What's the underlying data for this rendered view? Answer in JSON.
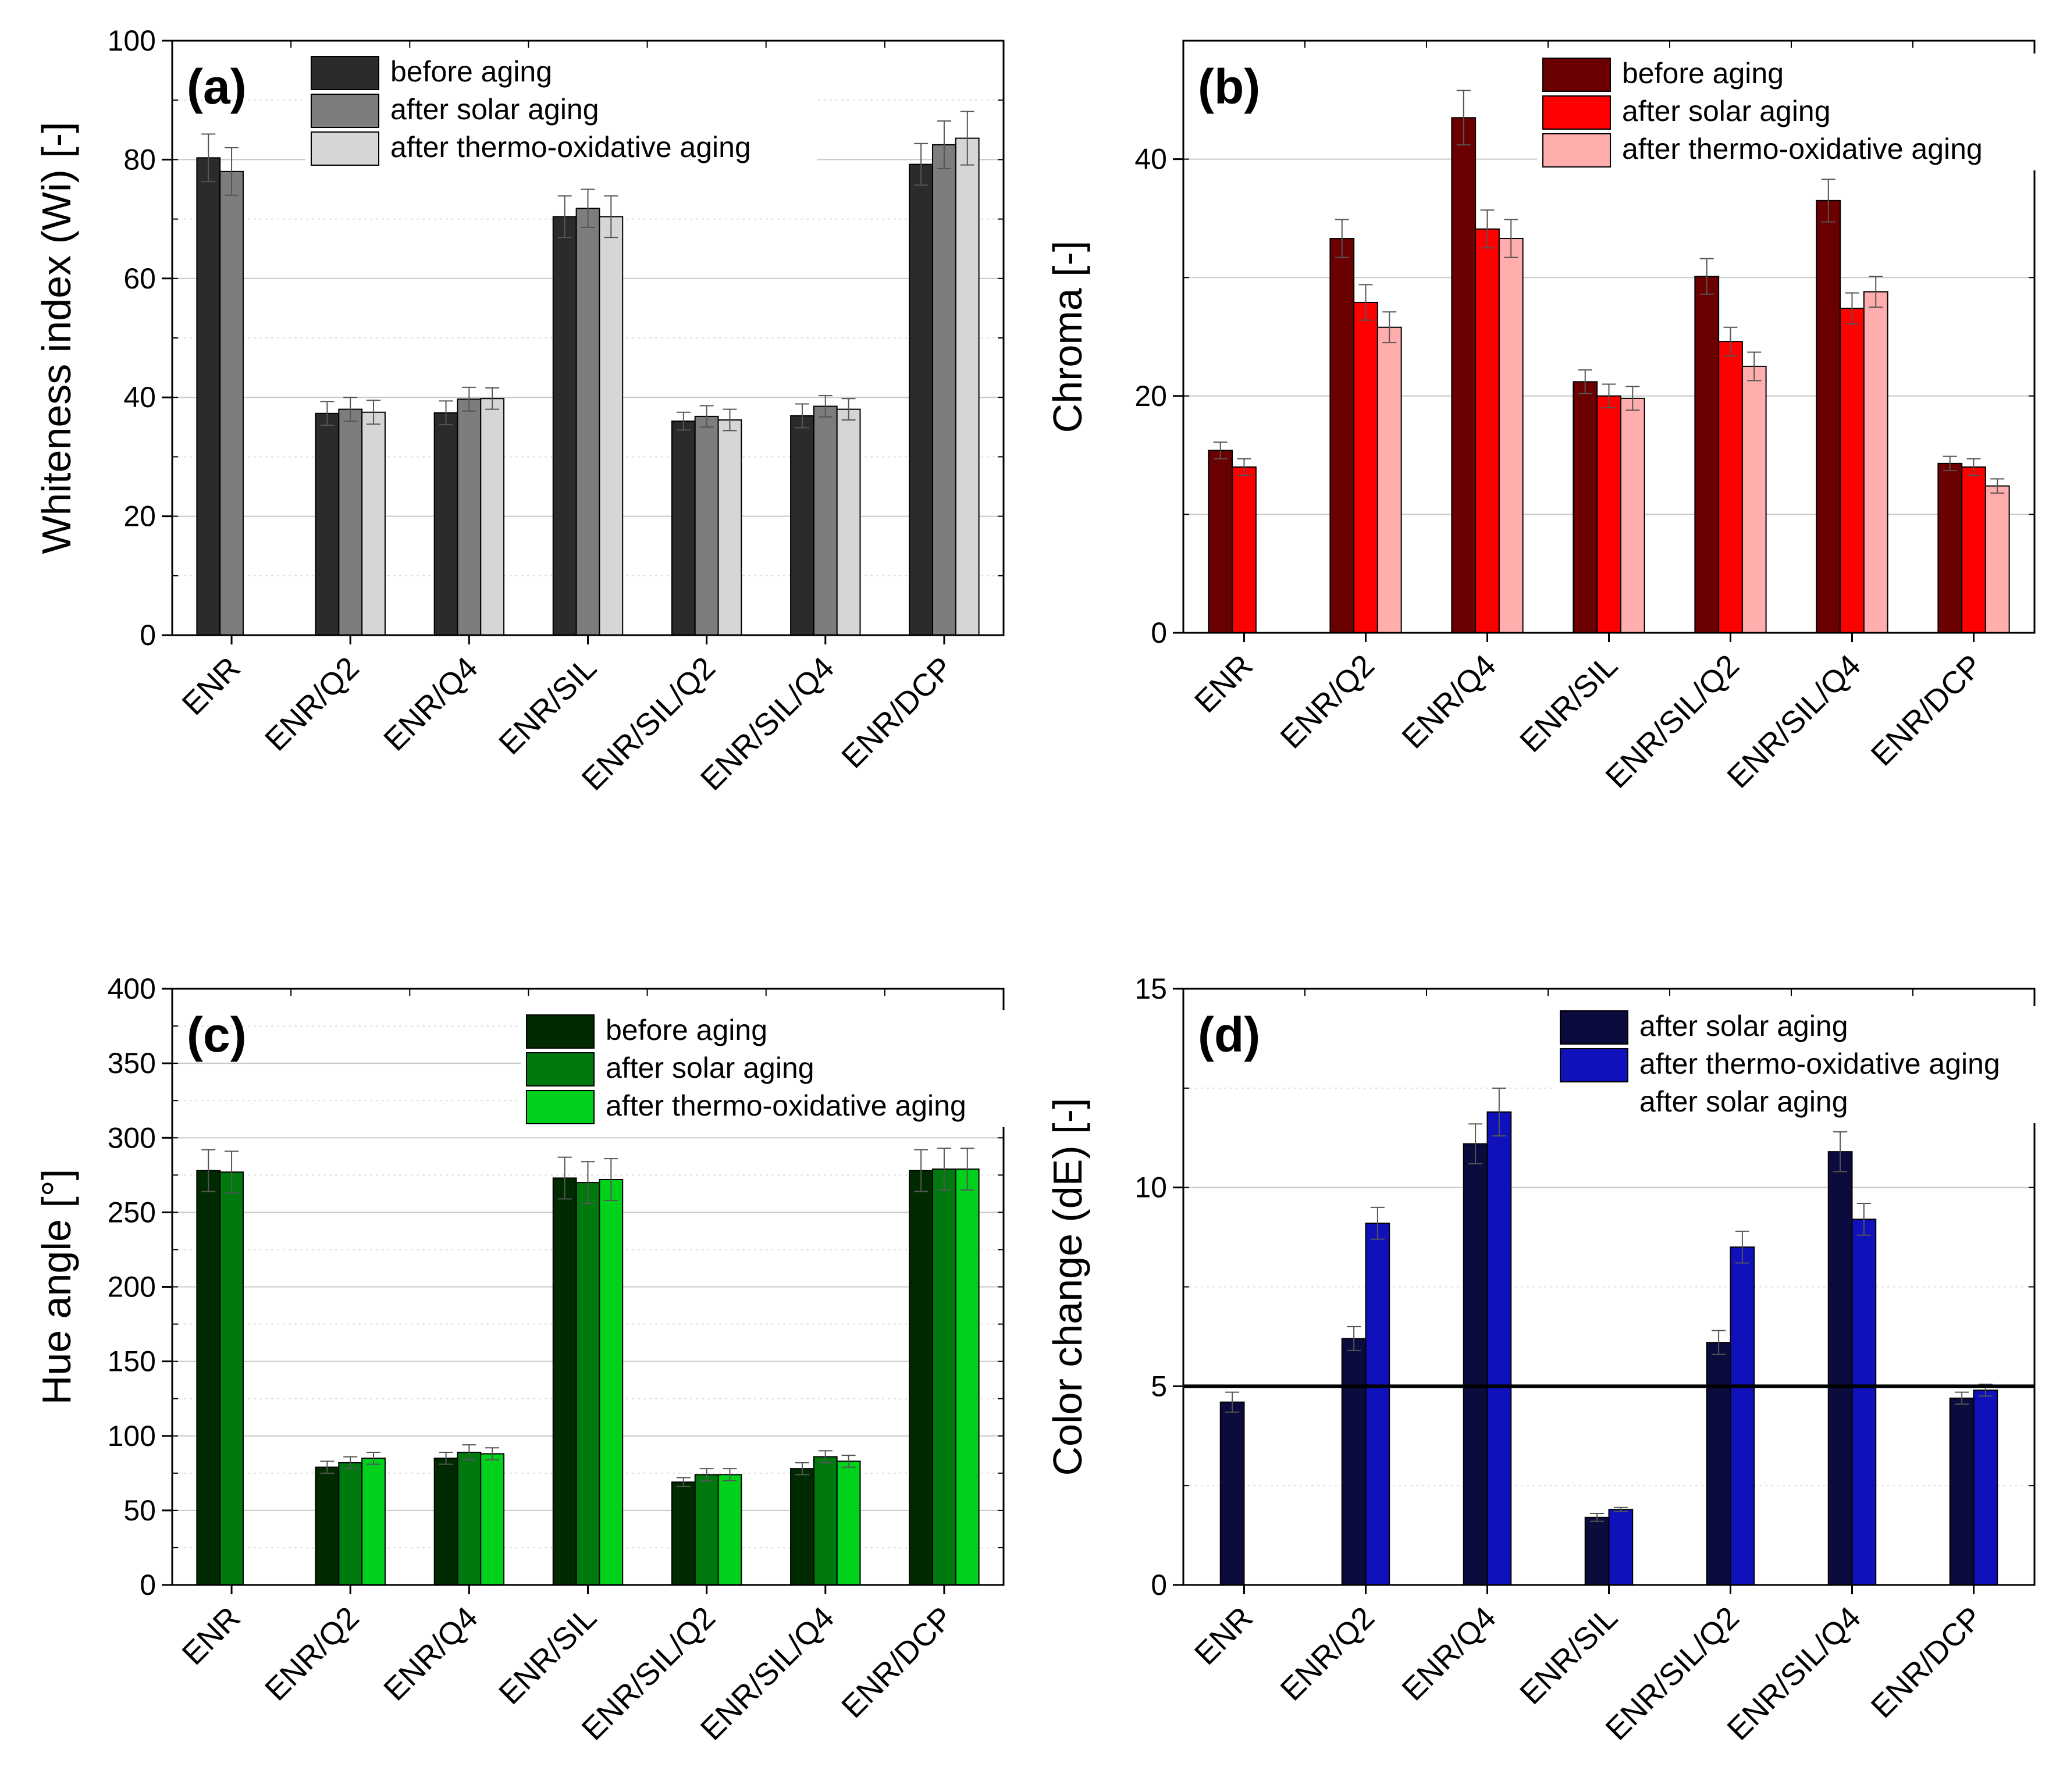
{
  "chart_data": [
    {
      "type": "bar",
      "panel_label": "(a)",
      "ylabel": "Whiteness index (Wi) [-]",
      "ylim": [
        0,
        100
      ],
      "yticks": [
        0,
        20,
        40,
        60,
        80,
        100
      ],
      "categories": [
        "ENR",
        "ENR/Q2",
        "ENR/Q4",
        "ENR/SIL",
        "ENR/SIL/Q2",
        "ENR/SIL/Q4",
        "ENR/DCP"
      ],
      "legend_position": "top-center",
      "series": [
        {
          "name": "before aging",
          "color": "#2b2b2b",
          "values": [
            80.3,
            37.3,
            37.4,
            70.4,
            36.0,
            36.9,
            79.2
          ],
          "errors": [
            4.0,
            2.0,
            2.0,
            3.5,
            1.5,
            2.0,
            3.5
          ]
        },
        {
          "name": "after solar aging",
          "color": "#7d7d7d",
          "values": [
            78.0,
            38.0,
            39.7,
            71.8,
            36.8,
            38.5,
            82.5
          ],
          "errors": [
            4.0,
            2.0,
            2.0,
            3.2,
            1.8,
            1.8,
            4.0
          ]
        },
        {
          "name": "after thermo-oxidative aging",
          "color": "#d6d6d6",
          "values": [
            null,
            37.5,
            39.8,
            70.4,
            36.2,
            38.0,
            83.6
          ],
          "errors": [
            null,
            2.0,
            1.8,
            3.5,
            1.8,
            1.8,
            4.5
          ]
        }
      ]
    },
    {
      "type": "bar",
      "panel_label": "(b)",
      "ylabel": "Chroma [-]",
      "ylim": [
        0,
        50
      ],
      "yticks": [
        0,
        20,
        40
      ],
      "categories": [
        "ENR",
        "ENR/Q2",
        "ENR/Q4",
        "ENR/SIL",
        "ENR/SIL/Q2",
        "ENR/SIL/Q4",
        "ENR/DCP"
      ],
      "legend_position": "top-right",
      "series": [
        {
          "name": "before aging",
          "color": "#6b0000",
          "values": [
            15.4,
            33.3,
            43.5,
            21.2,
            30.1,
            36.5,
            14.3
          ],
          "errors": [
            0.7,
            1.6,
            2.3,
            1.0,
            1.5,
            1.8,
            0.6
          ]
        },
        {
          "name": "after solar aging",
          "color": "#ff0000",
          "values": [
            14.0,
            27.9,
            34.1,
            20.0,
            24.6,
            27.4,
            14.0
          ],
          "errors": [
            0.7,
            1.5,
            1.6,
            1.0,
            1.2,
            1.3,
            0.7
          ]
        },
        {
          "name": "after thermo-oxidative aging",
          "color": "#ffadad",
          "values": [
            null,
            25.8,
            33.3,
            19.8,
            22.5,
            28.8,
            12.4
          ],
          "errors": [
            null,
            1.3,
            1.6,
            1.0,
            1.2,
            1.3,
            0.6
          ]
        }
      ]
    },
    {
      "type": "bar",
      "panel_label": "(c)",
      "ylabel": "Hue angle [°]",
      "ylim": [
        0,
        400
      ],
      "yticks": [
        0,
        50,
        100,
        150,
        200,
        250,
        300,
        350,
        400
      ],
      "categories": [
        "ENR",
        "ENR/Q2",
        "ENR/Q4",
        "ENR/SIL",
        "ENR/SIL/Q2",
        "ENR/SIL/Q4",
        "ENR/DCP"
      ],
      "legend_position": "top-right",
      "series": [
        {
          "name": "before aging",
          "color": "#002b00",
          "values": [
            278,
            79,
            85,
            273,
            69,
            78,
            278
          ],
          "errors": [
            14,
            4,
            4,
            14,
            3,
            4,
            14
          ]
        },
        {
          "name": "after solar aging",
          "color": "#007a0f",
          "values": [
            277,
            82,
            89,
            270,
            74,
            86,
            279
          ],
          "errors": [
            14,
            4,
            5,
            14,
            4,
            4,
            14
          ]
        },
        {
          "name": "after thermo-oxidative aging",
          "color": "#00d21c",
          "values": [
            null,
            85,
            88,
            272,
            74,
            83,
            279
          ],
          "errors": [
            null,
            4,
            4,
            14,
            4,
            4,
            14
          ]
        }
      ]
    },
    {
      "type": "bar",
      "panel_label": "(d)",
      "ylabel": "Color change (dE) [-]",
      "ylim": [
        0,
        15
      ],
      "yticks": [
        0,
        5,
        10,
        15
      ],
      "reference_line": 5,
      "categories": [
        "ENR",
        "ENR/Q2",
        "ENR/Q4",
        "ENR/SIL",
        "ENR/SIL/Q2",
        "ENR/SIL/Q4",
        "ENR/DCP"
      ],
      "legend_position": "top-right",
      "extra_legend_text": "after solar aging",
      "series": [
        {
          "name": "after solar aging",
          "color": "#0b0b3d",
          "values": [
            4.6,
            6.2,
            11.1,
            1.7,
            6.1,
            10.9,
            4.7
          ],
          "errors": [
            0.25,
            0.3,
            0.5,
            0.1,
            0.3,
            0.5,
            0.15
          ]
        },
        {
          "name": "after thermo-oxidative aging",
          "color": "#1111bb",
          "values": [
            null,
            9.1,
            11.9,
            1.9,
            8.5,
            9.2,
            4.9
          ],
          "errors": [
            null,
            0.4,
            0.6,
            0.05,
            0.4,
            0.4,
            0.15
          ]
        }
      ]
    }
  ]
}
